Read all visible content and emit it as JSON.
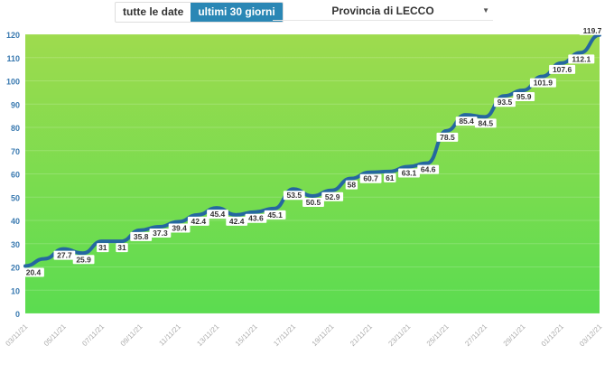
{
  "controls": {
    "all_dates": "tutte le date",
    "last_30": "ultimi 30 giorni",
    "province": "Provincia di LECCO",
    "caret_icon": "caret-down-icon"
  },
  "colors": {
    "line": "#2567a0",
    "bg_top": "#9edb4e",
    "bg_bottom": "#5bdc50",
    "active_button": "#2a87b5",
    "axis_text": "#3a7ab0"
  },
  "chart_data": {
    "type": "line",
    "ylim": [
      0,
      120
    ],
    "yticks": [
      0,
      10,
      20,
      30,
      40,
      50,
      60,
      70,
      80,
      90,
      100,
      110,
      120
    ],
    "x": [
      "03/11/21",
      "04/11/21",
      "05/11/21",
      "06/11/21",
      "07/11/21",
      "08/11/21",
      "09/11/21",
      "10/11/21",
      "11/11/21",
      "12/11/21",
      "13/11/21",
      "14/11/21",
      "15/11/21",
      "16/11/21",
      "17/11/21",
      "18/11/21",
      "19/11/21",
      "20/11/21",
      "21/11/21",
      "22/11/21",
      "23/11/21",
      "24/11/21",
      "25/11/21",
      "26/11/21",
      "27/11/21",
      "28/11/21",
      "29/11/21",
      "30/11/21",
      "01/12/21",
      "02/12/21",
      "03/12/21"
    ],
    "xticks": [
      "03/11/21",
      "05/11/21",
      "07/11/21",
      "09/11/21",
      "11/11/21",
      "13/11/21",
      "15/11/21",
      "17/11/21",
      "19/11/21",
      "21/11/21",
      "23/11/21",
      "25/11/21",
      "27/11/21",
      "29/11/21",
      "01/12/21",
      "03/12/21"
    ],
    "values": [
      20.4,
      23.5,
      27.7,
      25.9,
      31,
      31,
      35.8,
      37.3,
      39.4,
      42.4,
      45.4,
      42.4,
      43.6,
      45.1,
      53.5,
      50.5,
      52.9,
      58,
      60.7,
      61,
      63.1,
      64.6,
      78.5,
      85.4,
      84.5,
      93.5,
      95.9,
      101.9,
      107.6,
      112.1,
      119.7
    ],
    "labels": [
      "20.4",
      "",
      "27.7",
      "25.9",
      "31",
      "31",
      "35.8",
      "37.3",
      "39.4",
      "42.4",
      "45.4",
      "42.4",
      "43.6",
      "45.1",
      "53.5",
      "50.5",
      "52.9",
      "58",
      "60.7",
      "61",
      "63.1",
      "64.6",
      "78.5",
      "85.4",
      "84.5",
      "93.5",
      "95.9",
      "101.9",
      "107.6",
      "112.1",
      "119.7"
    ]
  }
}
